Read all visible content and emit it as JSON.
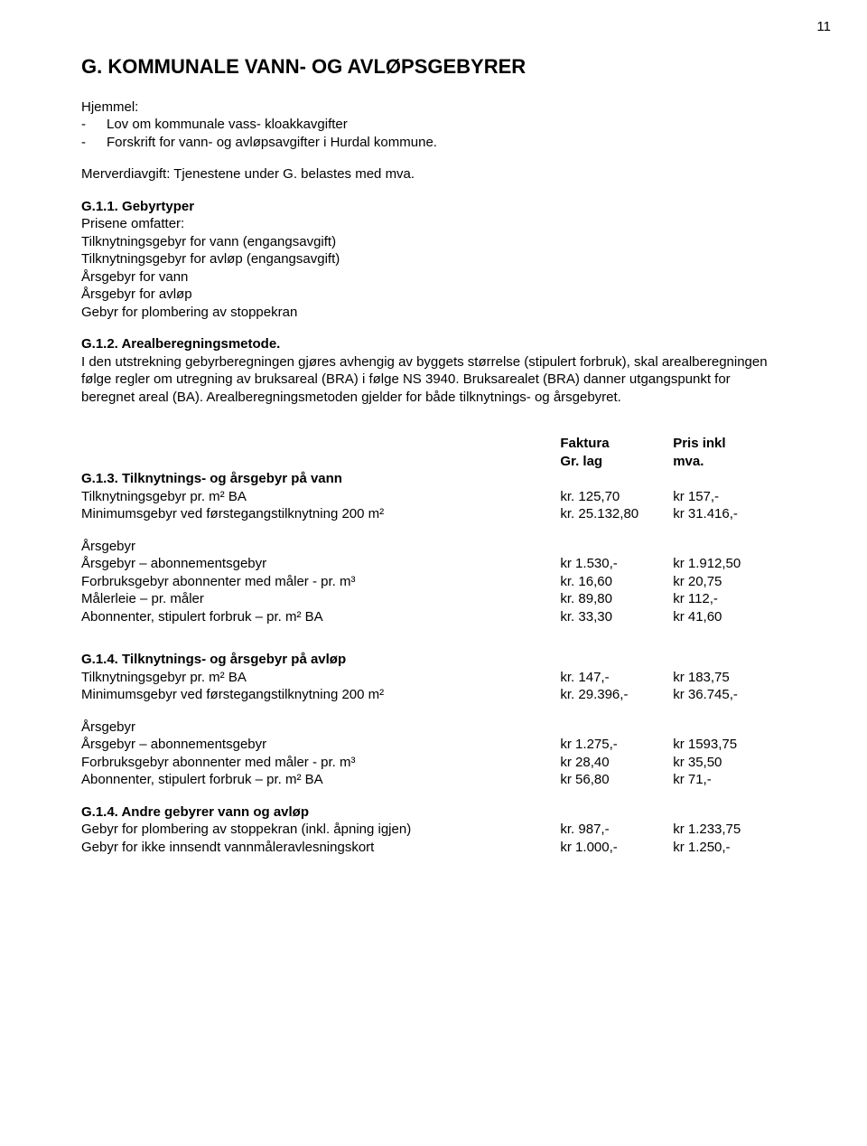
{
  "page_number": "11",
  "title": "G. KOMMUNALE VANN- OG AVLØPSGEBYRER",
  "hjemmel_label": "Hjemmel:",
  "hjemmel_items": [
    "Lov om kommunale vass- kloakkavgifter",
    "Forskrift for vann- og avløpsavgifter i Hurdal kommune."
  ],
  "mva_line": "Merverdiavgift: Tjenestene under G. belastes med mva.",
  "g11": {
    "head": "G.1.1. Gebyrtyper",
    "intro": "Prisene omfatter:",
    "items": [
      "Tilknytningsgebyr for vann (engangsavgift)",
      "Tilknytningsgebyr for avløp (engangsavgift)",
      "Årsgebyr for vann",
      "Årsgebyr for avløp",
      "Gebyr for plombering av stoppekran"
    ]
  },
  "g12": {
    "head": "G.1.2. Arealberegningsmetode.",
    "body": "I den utstrekning gebyrberegningen gjøres avhengig av byggets størrelse (stipulert forbruk), skal arealberegningen følge regler om utregning av bruksareal  (BRA) i følge NS 3940. Bruksarealet (BRA) danner utgangspunkt for beregnet areal (BA). Arealberegningsmetoden gjelder for både tilknytnings- og årsgebyret."
  },
  "col_head": {
    "c2a": "Faktura",
    "c2b": "Gr. lag",
    "c3a": "Pris inkl",
    "c3b": "mva."
  },
  "g13": {
    "head": "G.1.3. Tilknytnings- og årsgebyr på vann",
    "row1": {
      "l": "Tilknytningsgebyr pr. m²  BA",
      "c2": "kr. 125,70",
      "c3": "kr 157,-"
    },
    "row2": {
      "l": "Minimumsgebyr ved førstegangstilknytning 200 m²",
      "c2": "kr. 25.132,80",
      "c3": "kr 31.416,-"
    },
    "ars_label": "Årsgebyr",
    "rowA": {
      "l": "Årsgebyr – abonnementsgebyr",
      "c2": "kr 1.530,-",
      "c3": "kr 1.912,50"
    },
    "rowB": {
      "l": "Forbruksgebyr abonnenter med måler       - pr. m³",
      "c2": "kr.   16,60",
      "c3": "kr     20,75"
    },
    "rowC": {
      "l": "Målerleie – pr. måler",
      "c2": "kr.   89,80",
      "c3": "kr  112,-"
    },
    "rowD": {
      "l": "Abonnenter, stipulert forbruk – pr. m² BA",
      "c2": "kr.   33,30",
      "c3": "kr   41,60"
    }
  },
  "g14": {
    "head": "G.1.4. Tilknytnings- og årsgebyr på avløp",
    "row1": {
      "l": "Tilknytningsgebyr pr. m²  BA",
      "c2": "kr. 147,-",
      "c3": "kr  183,75"
    },
    "row2": {
      "l": "Minimumsgebyr ved førstegangstilknytning 200 m²",
      "c2": "kr. 29.396,-",
      "c3": "kr 36.745,-"
    },
    "ars_label": "Årsgebyr",
    "rowA": {
      "l": "Årsgebyr – abonnementsgebyr",
      "c2": "kr 1.275,-",
      "c3": "kr 1593,75"
    },
    "rowB": {
      "l": "Forbruksgebyr abonnenter med måler       - pr. m³",
      "c2": "kr   28,40",
      "c3": "kr     35,50"
    },
    "rowC": {
      "l": "Abonnenter, stipulert forbruk – pr. m² BA",
      "c2": "kr   56,80",
      "c3": "kr     71,-"
    }
  },
  "g14b": {
    "head": "G.1.4. Andre gebyrer vann og avløp",
    "row1": {
      "l": "Gebyr for plombering av stoppekran (inkl. åpning igjen)",
      "c2": "kr. 987,-",
      "c3": "kr 1.233,75"
    },
    "row2": {
      "l": "Gebyr for ikke innsendt vannmåleravlesningskort",
      "c2": "kr 1.000,-",
      "c3": "kr 1.250,-"
    }
  }
}
